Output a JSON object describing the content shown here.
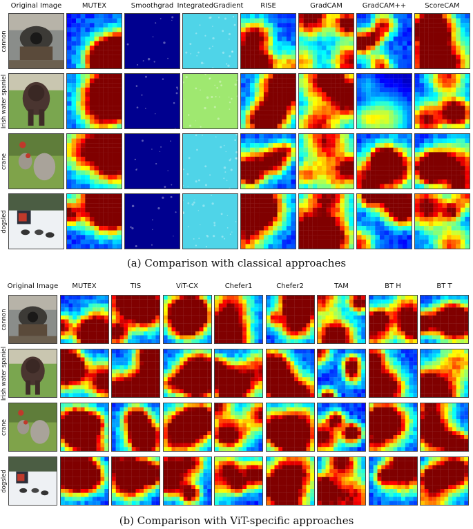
{
  "panels": [
    {
      "id": "a",
      "caption": "(a) Comparison with classical approaches",
      "columns": [
        "Original Image",
        "MUTEX",
        "Smoothgrad",
        "IntegratedGradient",
        "RISE",
        "GradCAM",
        "GradCAM++",
        "ScoreCAM"
      ],
      "rows": [
        "cannon",
        "Irish water spaniel",
        "crane",
        "dogsled"
      ],
      "map_style": {
        "Smoothgrad": "uniform-dark-blue",
        "IntegratedGradient": "uniform-cyan-green",
        "heatmaps": "jet-colormap"
      }
    },
    {
      "id": "b",
      "caption": "(b) Comparison with ViT-specific approaches",
      "columns": [
        "Original Image",
        "MUTEX",
        "TIS",
        "ViT-CX",
        "Chefer1",
        "Chefer2",
        "TAM",
        "BT H",
        "BT T"
      ],
      "rows": [
        "cannon",
        "Irish water spaniel",
        "crane",
        "dogsled"
      ]
    }
  ],
  "colors": {
    "jet_low": "#00008f",
    "jet_mid": "#00ffff",
    "jet_high": "#ff0000",
    "ig_base": "#4fd4e8",
    "ig_base_green": "#9fe870"
  }
}
